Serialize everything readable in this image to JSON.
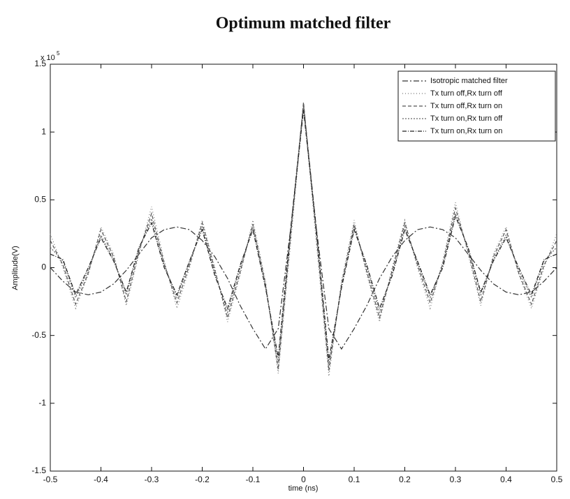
{
  "chart_data": {
    "type": "line",
    "title": "Optimum matched filter",
    "x_label": "time (ns)",
    "y_label": "Amplitude(V)",
    "y_scale_label": "x 10",
    "y_scale_exponent": "5",
    "x": [
      -0.5,
      -0.475,
      -0.45,
      -0.425,
      -0.4,
      -0.375,
      -0.35,
      -0.325,
      -0.3,
      -0.275,
      -0.25,
      -0.225,
      -0.2,
      -0.175,
      -0.15,
      -0.125,
      -0.1,
      -0.075,
      -0.05,
      -0.025,
      0,
      0.025,
      0.05,
      0.075,
      0.1,
      0.125,
      0.15,
      0.175,
      0.2,
      0.225,
      0.25,
      0.275,
      0.3,
      0.325,
      0.35,
      0.375,
      0.4,
      0.425,
      0.45,
      0.475,
      0.5
    ],
    "series": [
      {
        "name": "Isotropic matched filter",
        "color": "#333333",
        "dash": "8 3 2 3",
        "values": [
          0.0,
          -0.1,
          -0.18,
          -0.2,
          -0.18,
          -0.12,
          -0.02,
          0.1,
          0.22,
          0.28,
          0.3,
          0.28,
          0.2,
          0.08,
          -0.08,
          -0.28,
          -0.45,
          -0.6,
          -0.45,
          0.3,
          1.2,
          0.3,
          -0.45,
          -0.6,
          -0.45,
          -0.28,
          -0.08,
          0.08,
          0.2,
          0.28,
          0.3,
          0.28,
          0.22,
          0.1,
          -0.02,
          -0.12,
          -0.18,
          -0.2,
          -0.18,
          -0.1,
          0.0
        ]
      },
      {
        "name": "Tx turn off,Rx turn off",
        "color": "#777777",
        "dash": "1 3",
        "values": [
          0.25,
          0.0,
          -0.3,
          -0.05,
          0.3,
          0.1,
          -0.28,
          0.1,
          0.45,
          0.05,
          -0.3,
          0.0,
          0.35,
          0.0,
          -0.4,
          -0.05,
          0.35,
          -0.1,
          -0.78,
          0.2,
          1.2,
          0.2,
          -0.8,
          -0.1,
          0.35,
          -0.05,
          -0.4,
          0.0,
          0.35,
          0.0,
          -0.3,
          0.05,
          0.48,
          0.1,
          -0.28,
          0.1,
          0.3,
          -0.05,
          -0.3,
          0.0,
          0.25
        ]
      },
      {
        "name": "Tx turn off,Rx turn on",
        "color": "#555555",
        "dash": "5 3",
        "values": [
          0.2,
          0.02,
          -0.27,
          -0.04,
          0.28,
          0.08,
          -0.25,
          0.12,
          0.4,
          0.03,
          -0.26,
          0.02,
          0.33,
          -0.02,
          -0.37,
          -0.03,
          0.32,
          -0.12,
          -0.75,
          0.25,
          1.22,
          0.25,
          -0.76,
          -0.12,
          0.32,
          -0.03,
          -0.37,
          -0.02,
          0.33,
          0.02,
          -0.26,
          0.03,
          0.44,
          0.12,
          -0.25,
          0.08,
          0.28,
          -0.04,
          -0.27,
          0.02,
          0.2
        ]
      },
      {
        "name": "Tx turn on,Rx turn off",
        "color": "#666666",
        "dash": "2 2",
        "values": [
          0.15,
          0.05,
          -0.22,
          -0.02,
          0.24,
          0.06,
          -0.2,
          0.14,
          0.36,
          0.02,
          -0.22,
          0.04,
          0.3,
          -0.04,
          -0.33,
          0.0,
          0.3,
          -0.14,
          -0.7,
          0.28,
          1.18,
          0.28,
          -0.72,
          -0.14,
          0.3,
          0.0,
          -0.33,
          -0.04,
          0.3,
          0.04,
          -0.22,
          0.02,
          0.4,
          0.14,
          -0.2,
          0.06,
          0.24,
          -0.02,
          -0.22,
          0.05,
          0.15
        ]
      },
      {
        "name": "Tx turn on,Rx turn on",
        "color": "#222222",
        "dash": "6 2 1 2",
        "values": [
          0.1,
          0.06,
          -0.2,
          0.0,
          0.22,
          0.05,
          -0.18,
          0.15,
          0.33,
          0.0,
          -0.2,
          0.05,
          0.28,
          -0.06,
          -0.3,
          0.02,
          0.28,
          -0.15,
          -0.66,
          0.3,
          1.16,
          0.3,
          -0.68,
          -0.15,
          0.28,
          0.02,
          -0.3,
          -0.06,
          0.28,
          0.05,
          -0.2,
          0.0,
          0.38,
          0.15,
          -0.18,
          0.05,
          0.22,
          0.0,
          -0.2,
          0.06,
          0.1
        ]
      }
    ],
    "xlim": [
      -0.5,
      0.5
    ],
    "xticks": [
      -0.5,
      -0.4,
      -0.3,
      -0.2,
      -0.1,
      0,
      0.1,
      0.2,
      0.3,
      0.4,
      0.5
    ],
    "ylim": [
      -1.5,
      1.5
    ],
    "yticks": [
      -1.5,
      -1,
      -0.5,
      0,
      0.5,
      1,
      1.5
    ],
    "grid": false,
    "legend": "upper right"
  }
}
